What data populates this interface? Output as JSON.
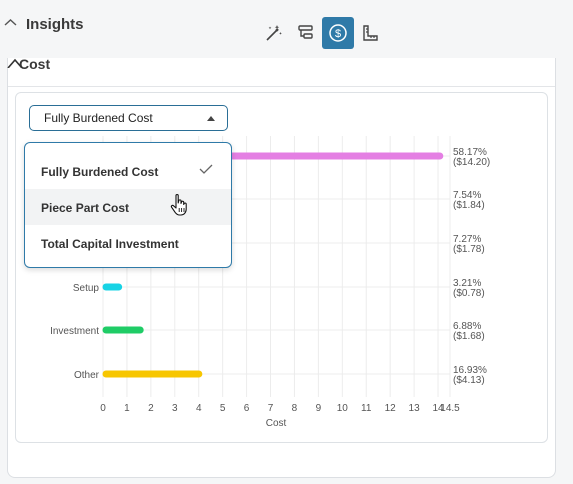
{
  "header": {
    "title": "Insights"
  },
  "toolbar": {
    "buttons": [
      {
        "icon": "magic-wand-icon",
        "active": false
      },
      {
        "icon": "flow-icon",
        "active": false
      },
      {
        "icon": "dollar-icon",
        "active": true
      },
      {
        "icon": "ruler-icon",
        "active": false
      }
    ]
  },
  "section": {
    "title": "Cost"
  },
  "select": {
    "value": "Fully Burdened Cost"
  },
  "dropdown": {
    "options": [
      "Fully Burdened Cost",
      "Piece Part Cost",
      "Total Capital Investment"
    ],
    "selected": 0,
    "hovered": 1
  },
  "chart_data": {
    "type": "bar",
    "orientation": "horizontal",
    "categories": [
      "",
      "",
      "",
      "Setup",
      "Investment",
      "Other"
    ],
    "values": [
      14.2,
      1.84,
      1.78,
      0.78,
      1.68,
      4.13
    ],
    "percent_labels": [
      "58.17%",
      "7.54%",
      "7.27%",
      "3.21%",
      "6.88%",
      "16.93%"
    ],
    "value_labels": [
      "($14.20)",
      "($1.84)",
      "($1.78)",
      "($0.78)",
      "($1.68)",
      "($4.13)"
    ],
    "colors": [
      "#e47fe3",
      "#cccccc",
      "#cccccc",
      "#17d3e5",
      "#1fcc66",
      "#f7c600"
    ],
    "xlabel": "Cost",
    "xlim": [
      0,
      14.5
    ],
    "xticks": [
      "0",
      "1",
      "2",
      "3",
      "4",
      "5",
      "6",
      "7",
      "8",
      "9",
      "10",
      "11",
      "12",
      "13",
      "14",
      "14.5"
    ],
    "xtick_values": [
      0,
      1,
      2,
      3,
      4,
      5,
      6,
      7,
      8,
      9,
      10,
      11,
      12,
      13,
      14,
      14.5
    ],
    "grid": true
  }
}
